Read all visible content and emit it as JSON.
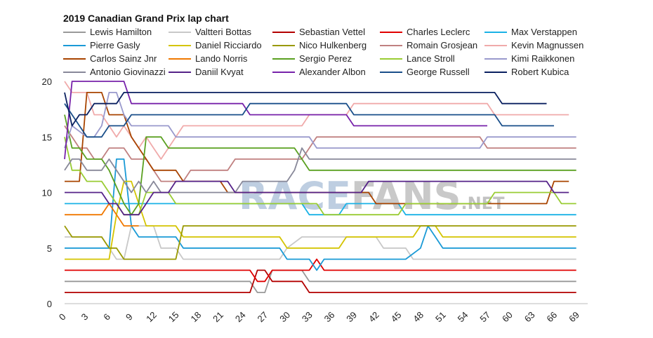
{
  "chart_data": {
    "type": "line",
    "title": "2019 Canadian Grand Prix lap chart",
    "xlabel": "",
    "ylabel": "",
    "xlim": [
      0,
      70
    ],
    "ylim": [
      0,
      20
    ],
    "x_ticks": [
      "0",
      "3",
      "6",
      "9",
      "12",
      "15",
      "18",
      "21",
      "24",
      "27",
      "30",
      "33",
      "36",
      "39",
      "42",
      "45",
      "48",
      "51",
      "54",
      "57",
      "60",
      "63",
      "66",
      "69"
    ],
    "y_ticks": [
      "0",
      "5",
      "10",
      "15",
      "20"
    ],
    "grid": false,
    "legend_position": "top",
    "watermark": {
      "part1": "RACE",
      "part2": "FANS",
      "part3": ".NET"
    },
    "series": [
      {
        "name": "Lewis Hamilton",
        "color": "#999999",
        "points": [
          [
            0,
            2
          ],
          [
            25,
            2
          ],
          [
            26,
            1
          ],
          [
            27,
            1
          ],
          [
            28,
            3
          ],
          [
            32,
            3
          ],
          [
            33,
            2
          ],
          [
            69,
            2
          ]
        ]
      },
      {
        "name": "Valtteri Bottas",
        "color": "#c8c8c8",
        "points": [
          [
            0,
            6
          ],
          [
            5,
            6
          ],
          [
            6,
            5
          ],
          [
            7,
            4
          ],
          [
            8,
            4
          ],
          [
            9,
            7
          ],
          [
            12,
            7
          ],
          [
            13,
            5
          ],
          [
            15,
            5
          ],
          [
            16,
            4
          ],
          [
            29,
            4
          ],
          [
            30,
            5
          ],
          [
            32,
            6
          ],
          [
            42,
            6
          ],
          [
            43,
            5
          ],
          [
            46,
            5
          ],
          [
            47,
            4
          ],
          [
            69,
            4
          ]
        ]
      },
      {
        "name": "Sebastian Vettel",
        "color": "#b30000",
        "points": [
          [
            0,
            1
          ],
          [
            25,
            1
          ],
          [
            26,
            3
          ],
          [
            27,
            3
          ],
          [
            28,
            2
          ],
          [
            32,
            2
          ],
          [
            33,
            1
          ],
          [
            69,
            1
          ]
        ]
      },
      {
        "name": "Charles Leclerc",
        "color": "#e00000",
        "points": [
          [
            0,
            3
          ],
          [
            25,
            3
          ],
          [
            26,
            2
          ],
          [
            27,
            2
          ],
          [
            28,
            3
          ],
          [
            33,
            3
          ],
          [
            34,
            4
          ],
          [
            35,
            3
          ],
          [
            69,
            3
          ]
        ]
      },
      {
        "name": "Max Verstappen",
        "color": "#1ab2e6",
        "points": [
          [
            0,
            9
          ],
          [
            13,
            9
          ],
          [
            14,
            9
          ],
          [
            32,
            9
          ],
          [
            33,
            8
          ],
          [
            37,
            8
          ],
          [
            38,
            9
          ],
          [
            45,
            9
          ],
          [
            46,
            8
          ],
          [
            69,
            8
          ]
        ]
      },
      {
        "name": "Pierre Gasly",
        "color": "#1a9ad6",
        "points": [
          [
            0,
            5
          ],
          [
            6,
            5
          ],
          [
            7,
            13
          ],
          [
            8,
            13
          ],
          [
            9,
            7
          ],
          [
            10,
            6
          ],
          [
            15,
            6
          ],
          [
            16,
            5
          ],
          [
            29,
            5
          ],
          [
            30,
            4
          ],
          [
            33,
            4
          ],
          [
            34,
            3
          ],
          [
            35,
            4
          ],
          [
            46,
            4
          ],
          [
            48,
            5
          ],
          [
            49,
            7
          ],
          [
            50,
            6
          ],
          [
            51,
            5
          ],
          [
            69,
            5
          ]
        ]
      },
      {
        "name": "Daniel Ricciardo",
        "color": "#d4c400",
        "points": [
          [
            0,
            4
          ],
          [
            6,
            4
          ],
          [
            7,
            8
          ],
          [
            8,
            11
          ],
          [
            9,
            11
          ],
          [
            10,
            9
          ],
          [
            11,
            7
          ],
          [
            15,
            7
          ],
          [
            16,
            6
          ],
          [
            29,
            6
          ],
          [
            30,
            5
          ],
          [
            37,
            5
          ],
          [
            38,
            6
          ],
          [
            47,
            6
          ],
          [
            48,
            7
          ],
          [
            50,
            7
          ],
          [
            51,
            6
          ],
          [
            69,
            6
          ]
        ]
      },
      {
        "name": "Nico Hulkenberg",
        "color": "#999900",
        "points": [
          [
            0,
            7
          ],
          [
            1,
            6
          ],
          [
            5,
            6
          ],
          [
            6,
            5
          ],
          [
            7,
            5
          ],
          [
            8,
            4
          ],
          [
            15,
            4
          ],
          [
            16,
            7
          ],
          [
            69,
            7
          ]
        ]
      },
      {
        "name": "Romain Grosjean",
        "color": "#c08080",
        "points": [
          [
            0,
            16
          ],
          [
            1,
            15
          ],
          [
            2,
            14
          ],
          [
            3,
            14
          ],
          [
            4,
            13
          ],
          [
            5,
            13
          ],
          [
            6,
            14
          ],
          [
            8,
            14
          ],
          [
            9,
            13
          ],
          [
            11,
            13
          ],
          [
            12,
            12
          ],
          [
            13,
            11
          ],
          [
            16,
            11
          ],
          [
            17,
            12
          ],
          [
            22,
            12
          ],
          [
            23,
            13
          ],
          [
            32,
            13
          ],
          [
            33,
            14
          ],
          [
            34,
            15
          ],
          [
            56,
            15
          ],
          [
            57,
            14
          ],
          [
            69,
            14
          ]
        ]
      },
      {
        "name": "Kevin Magnussen",
        "color": "#f0aaaa",
        "points": [
          [
            0,
            20
          ],
          [
            1,
            19
          ],
          [
            3,
            19
          ],
          [
            4,
            17
          ],
          [
            5,
            17
          ],
          [
            6,
            16
          ],
          [
            7,
            15
          ],
          [
            8,
            16
          ],
          [
            9,
            15
          ],
          [
            10,
            14
          ],
          [
            11,
            15
          ],
          [
            12,
            14
          ],
          [
            13,
            13
          ],
          [
            15,
            15
          ],
          [
            16,
            16
          ],
          [
            32,
            16
          ],
          [
            33,
            17
          ],
          [
            38,
            17
          ],
          [
            39,
            18
          ],
          [
            57,
            18
          ],
          [
            58,
            17
          ],
          [
            68,
            17
          ]
        ]
      },
      {
        "name": "Carlos Sainz Jnr",
        "color": "#a84400",
        "points": [
          [
            0,
            11
          ],
          [
            2,
            11
          ],
          [
            3,
            19
          ],
          [
            5,
            19
          ],
          [
            6,
            17
          ],
          [
            8,
            17
          ],
          [
            9,
            15
          ],
          [
            11,
            13
          ],
          [
            12,
            12
          ],
          [
            15,
            12
          ],
          [
            16,
            11
          ],
          [
            21,
            11
          ],
          [
            22,
            10
          ],
          [
            41,
            10
          ],
          [
            42,
            9
          ],
          [
            65,
            9
          ],
          [
            66,
            11
          ],
          [
            68,
            11
          ]
        ]
      },
      {
        "name": "Lando Norris",
        "color": "#f07800",
        "points": [
          [
            0,
            8
          ],
          [
            5,
            8
          ],
          [
            6,
            9
          ],
          [
            8,
            7
          ],
          [
            9,
            7
          ],
          [
            10,
            7
          ]
        ]
      },
      {
        "name": "Sergio Perez",
        "color": "#5aa020",
        "points": [
          [
            0,
            17
          ],
          [
            1,
            14
          ],
          [
            2,
            14
          ],
          [
            3,
            13
          ],
          [
            5,
            13
          ],
          [
            6,
            12
          ],
          [
            8,
            9
          ],
          [
            9,
            8
          ],
          [
            10,
            9
          ],
          [
            11,
            15
          ],
          [
            13,
            15
          ],
          [
            14,
            14
          ],
          [
            31,
            14
          ],
          [
            32,
            13
          ],
          [
            33,
            12
          ],
          [
            69,
            12
          ]
        ]
      },
      {
        "name": "Lance Stroll",
        "color": "#99cc33",
        "points": [
          [
            0,
            15
          ],
          [
            1,
            12
          ],
          [
            2,
            12
          ],
          [
            3,
            11
          ],
          [
            5,
            11
          ],
          [
            6,
            10
          ],
          [
            7,
            9
          ],
          [
            8,
            8
          ],
          [
            10,
            8
          ],
          [
            11,
            10
          ],
          [
            14,
            10
          ],
          [
            15,
            9
          ],
          [
            34,
            9
          ],
          [
            35,
            8
          ],
          [
            45,
            8
          ],
          [
            46,
            9
          ],
          [
            57,
            9
          ],
          [
            58,
            10
          ],
          [
            62,
            10
          ],
          [
            63,
            10
          ],
          [
            66,
            10
          ],
          [
            67,
            9
          ],
          [
            69,
            9
          ]
        ]
      },
      {
        "name": "Kimi Raikkonen",
        "color": "#9999cc",
        "points": [
          [
            0,
            14
          ],
          [
            1,
            16
          ],
          [
            3,
            15
          ],
          [
            4,
            15
          ],
          [
            5,
            16
          ],
          [
            6,
            19
          ],
          [
            7,
            19
          ],
          [
            8,
            17
          ],
          [
            9,
            16
          ],
          [
            14,
            16
          ],
          [
            15,
            15
          ],
          [
            33,
            15
          ],
          [
            34,
            14
          ],
          [
            56,
            14
          ],
          [
            57,
            15
          ],
          [
            69,
            15
          ]
        ]
      },
      {
        "name": "Antonio Giovinazzi",
        "color": "#888899",
        "points": [
          [
            0,
            12
          ],
          [
            1,
            13
          ],
          [
            2,
            13
          ],
          [
            3,
            12
          ],
          [
            5,
            12
          ],
          [
            6,
            13
          ],
          [
            7,
            12
          ],
          [
            8,
            11
          ],
          [
            9,
            10
          ],
          [
            10,
            11
          ],
          [
            11,
            10
          ],
          [
            12,
            11
          ],
          [
            13,
            10
          ],
          [
            23,
            10
          ],
          [
            24,
            11
          ],
          [
            30,
            11
          ],
          [
            31,
            12
          ],
          [
            32,
            14
          ],
          [
            33,
            13
          ],
          [
            56,
            13
          ],
          [
            57,
            13
          ],
          [
            69,
            13
          ]
        ]
      },
      {
        "name": "Daniil Kvyat",
        "color": "#552288",
        "points": [
          [
            0,
            10
          ],
          [
            5,
            10
          ],
          [
            6,
            9
          ],
          [
            7,
            9
          ],
          [
            8,
            8
          ],
          [
            10,
            8
          ],
          [
            11,
            9
          ],
          [
            12,
            10
          ],
          [
            14,
            10
          ],
          [
            15,
            11
          ],
          [
            22,
            11
          ],
          [
            23,
            10
          ],
          [
            40,
            10
          ],
          [
            41,
            11
          ],
          [
            65,
            11
          ],
          [
            66,
            10
          ],
          [
            68,
            10
          ]
        ]
      },
      {
        "name": "Alexander Albon",
        "color": "#7722aa",
        "points": [
          [
            0,
            13
          ],
          [
            1,
            20
          ],
          [
            8,
            20
          ],
          [
            9,
            18
          ],
          [
            24,
            18
          ],
          [
            25,
            17
          ],
          [
            38,
            17
          ],
          [
            39,
            16
          ],
          [
            57,
            16
          ]
        ]
      },
      {
        "name": "George Russell",
        "color": "#1a4f8a",
        "points": [
          [
            0,
            18
          ],
          [
            1,
            17
          ],
          [
            3,
            15
          ],
          [
            5,
            15
          ],
          [
            6,
            16
          ],
          [
            8,
            16
          ],
          [
            9,
            17
          ],
          [
            24,
            17
          ],
          [
            25,
            18
          ],
          [
            38,
            18
          ],
          [
            39,
            17
          ],
          [
            58,
            17
          ],
          [
            59,
            16
          ],
          [
            66,
            16
          ]
        ]
      },
      {
        "name": "Robert Kubica",
        "color": "#0a2060",
        "points": [
          [
            0,
            19
          ],
          [
            1,
            16
          ],
          [
            2,
            17
          ],
          [
            3,
            17
          ],
          [
            4,
            18
          ],
          [
            6,
            18
          ],
          [
            7,
            18
          ],
          [
            8,
            19
          ],
          [
            58,
            19
          ],
          [
            59,
            18
          ],
          [
            65,
            18
          ]
        ]
      }
    ]
  }
}
